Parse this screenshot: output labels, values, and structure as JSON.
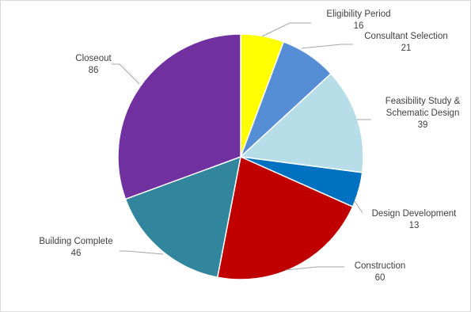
{
  "chart_data": {
    "type": "pie",
    "title": "",
    "start_angle_deg": 0,
    "direction": "clockwise",
    "slices": [
      {
        "label": "Eligibility Period",
        "value": 16,
        "color": "#FFFF00"
      },
      {
        "label": "Consultant Selection",
        "value": 21,
        "color": "#558ED5"
      },
      {
        "label": "Feasibility Study & Schematic Design",
        "value": 39,
        "color": "#B7DEE8"
      },
      {
        "label": "Design Development",
        "value": 13,
        "color": "#0070C0"
      },
      {
        "label": "Construction",
        "value": 60,
        "color": "#C00000"
      },
      {
        "label": "Building Complete",
        "value": 46,
        "color": "#31859C"
      },
      {
        "label": "Closeout",
        "value": 86,
        "color": "#7030A0"
      }
    ],
    "labels": [
      {
        "lines": [
          "Eligibility Period",
          "16"
        ]
      },
      {
        "lines": [
          "Consultant Selection",
          "21"
        ]
      },
      {
        "lines": [
          "Feasibility Study &",
          "Schematic Design",
          "39"
        ]
      },
      {
        "lines": [
          "Design Development",
          "13"
        ]
      },
      {
        "lines": [
          "Construction",
          "60"
        ]
      },
      {
        "lines": [
          "Building Complete",
          "46"
        ]
      },
      {
        "lines": [
          "Closeout",
          "86"
        ]
      }
    ],
    "legend": "none"
  }
}
